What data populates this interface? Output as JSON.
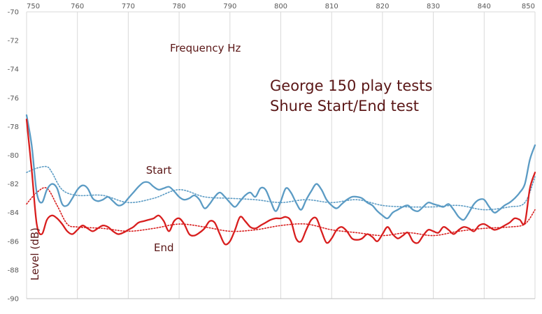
{
  "chart_data": {
    "type": "line",
    "title_lines": [
      "George 150 play tests",
      "Shure Start/End test"
    ],
    "xlabel": "Frequency Hz",
    "ylabel": "Level (dB)",
    "xlim": [
      750,
      850
    ],
    "ylim": [
      -90,
      -70
    ],
    "x_ticks": [
      750,
      760,
      770,
      780,
      790,
      800,
      810,
      820,
      830,
      840,
      850
    ],
    "y_ticks": [
      -70,
      -72,
      -74,
      -76,
      -78,
      -80,
      -82,
      -84,
      -86,
      -88,
      -90
    ],
    "grid": "vertical",
    "colors": {
      "start": "#5b9bc4",
      "end": "#d81e1e",
      "text": "#5a1616",
      "grid": "#d9d9d9"
    },
    "annotations": [
      {
        "text": "Start",
        "x": 776,
        "y": -81.3
      },
      {
        "text": "End",
        "x": 777,
        "y": -86.7
      }
    ],
    "series": [
      {
        "name": "Start",
        "style": "solid",
        "color": "#5b9bc4",
        "points": [
          [
            750,
            -77.2
          ],
          [
            751,
            -79.3
          ],
          [
            752,
            -82.6
          ],
          [
            753,
            -83.3
          ],
          [
            754,
            -82.4
          ],
          [
            755,
            -82.0
          ],
          [
            756,
            -82.3
          ],
          [
            757,
            -83.4
          ],
          [
            758,
            -83.5
          ],
          [
            759,
            -83.0
          ],
          [
            760,
            -82.4
          ],
          [
            761,
            -82.1
          ],
          [
            762,
            -82.3
          ],
          [
            763,
            -83.0
          ],
          [
            764,
            -83.2
          ],
          [
            765,
            -83.1
          ],
          [
            766,
            -82.9
          ],
          [
            767,
            -83.2
          ],
          [
            768,
            -83.5
          ],
          [
            769,
            -83.4
          ],
          [
            770,
            -83.0
          ],
          [
            771,
            -82.6
          ],
          [
            772,
            -82.2
          ],
          [
            773,
            -81.9
          ],
          [
            774,
            -81.9
          ],
          [
            775,
            -82.2
          ],
          [
            776,
            -82.4
          ],
          [
            777,
            -82.3
          ],
          [
            778,
            -82.2
          ],
          [
            779,
            -82.5
          ],
          [
            780,
            -82.9
          ],
          [
            781,
            -83.1
          ],
          [
            782,
            -83.0
          ],
          [
            783,
            -82.8
          ],
          [
            784,
            -83.1
          ],
          [
            785,
            -83.7
          ],
          [
            786,
            -83.4
          ],
          [
            787,
            -82.9
          ],
          [
            788,
            -82.6
          ],
          [
            789,
            -82.9
          ],
          [
            790,
            -83.3
          ],
          [
            791,
            -83.6
          ],
          [
            792,
            -83.2
          ],
          [
            793,
            -82.8
          ],
          [
            794,
            -82.6
          ],
          [
            795,
            -82.9
          ],
          [
            796,
            -82.3
          ],
          [
            797,
            -82.4
          ],
          [
            798,
            -83.2
          ],
          [
            799,
            -83.9
          ],
          [
            800,
            -83.2
          ],
          [
            801,
            -82.3
          ],
          [
            802,
            -82.6
          ],
          [
            803,
            -83.3
          ],
          [
            804,
            -83.8
          ],
          [
            805,
            -83.1
          ],
          [
            806,
            -82.5
          ],
          [
            807,
            -82.0
          ],
          [
            808,
            -82.4
          ],
          [
            809,
            -83.1
          ],
          [
            810,
            -83.5
          ],
          [
            811,
            -83.7
          ],
          [
            812,
            -83.4
          ],
          [
            813,
            -83.1
          ],
          [
            814,
            -82.9
          ],
          [
            815,
            -82.9
          ],
          [
            816,
            -83.0
          ],
          [
            817,
            -83.3
          ],
          [
            818,
            -83.5
          ],
          [
            819,
            -83.9
          ],
          [
            820,
            -84.2
          ],
          [
            821,
            -84.4
          ],
          [
            822,
            -84.0
          ],
          [
            823,
            -83.8
          ],
          [
            824,
            -83.6
          ],
          [
            825,
            -83.5
          ],
          [
            826,
            -83.8
          ],
          [
            827,
            -83.9
          ],
          [
            828,
            -83.6
          ],
          [
            829,
            -83.3
          ],
          [
            830,
            -83.4
          ],
          [
            831,
            -83.5
          ],
          [
            832,
            -83.6
          ],
          [
            833,
            -83.4
          ],
          [
            834,
            -83.8
          ],
          [
            835,
            -84.3
          ],
          [
            836,
            -84.5
          ],
          [
            837,
            -84.0
          ],
          [
            838,
            -83.4
          ],
          [
            839,
            -83.1
          ],
          [
            840,
            -83.1
          ],
          [
            841,
            -83.6
          ],
          [
            842,
            -84.0
          ],
          [
            843,
            -83.8
          ],
          [
            844,
            -83.5
          ],
          [
            845,
            -83.3
          ],
          [
            846,
            -83.0
          ],
          [
            847,
            -82.6
          ],
          [
            848,
            -82.0
          ],
          [
            849,
            -80.3
          ],
          [
            850,
            -79.3
          ]
        ]
      },
      {
        "name": "End",
        "style": "solid",
        "color": "#d81e1e",
        "points": [
          [
            750,
            -77.5
          ],
          [
            751,
            -81.0
          ],
          [
            752,
            -84.8
          ],
          [
            753,
            -85.5
          ],
          [
            754,
            -84.5
          ],
          [
            755,
            -84.2
          ],
          [
            756,
            -84.4
          ],
          [
            757,
            -84.8
          ],
          [
            758,
            -85.3
          ],
          [
            759,
            -85.5
          ],
          [
            760,
            -85.2
          ],
          [
            761,
            -84.9
          ],
          [
            762,
            -85.1
          ],
          [
            763,
            -85.3
          ],
          [
            764,
            -85.1
          ],
          [
            765,
            -84.9
          ],
          [
            766,
            -85.0
          ],
          [
            767,
            -85.3
          ],
          [
            768,
            -85.5
          ],
          [
            769,
            -85.4
          ],
          [
            770,
            -85.2
          ],
          [
            771,
            -85.0
          ],
          [
            772,
            -84.7
          ],
          [
            773,
            -84.6
          ],
          [
            774,
            -84.5
          ],
          [
            775,
            -84.4
          ],
          [
            776,
            -84.2
          ],
          [
            777,
            -84.6
          ],
          [
            778,
            -85.3
          ],
          [
            779,
            -84.6
          ],
          [
            780,
            -84.4
          ],
          [
            781,
            -84.8
          ],
          [
            782,
            -85.5
          ],
          [
            783,
            -85.6
          ],
          [
            784,
            -85.4
          ],
          [
            785,
            -85.1
          ],
          [
            786,
            -84.6
          ],
          [
            787,
            -84.7
          ],
          [
            788,
            -85.5
          ],
          [
            789,
            -86.2
          ],
          [
            790,
            -86.0
          ],
          [
            791,
            -85.2
          ],
          [
            792,
            -84.3
          ],
          [
            793,
            -84.6
          ],
          [
            794,
            -85.0
          ],
          [
            795,
            -85.1
          ],
          [
            796,
            -84.9
          ],
          [
            797,
            -84.7
          ],
          [
            798,
            -84.5
          ],
          [
            799,
            -84.4
          ],
          [
            800,
            -84.4
          ],
          [
            801,
            -84.3
          ],
          [
            802,
            -84.6
          ],
          [
            803,
            -85.8
          ],
          [
            804,
            -86.0
          ],
          [
            805,
            -85.2
          ],
          [
            806,
            -84.5
          ],
          [
            807,
            -84.4
          ],
          [
            808,
            -85.3
          ],
          [
            809,
            -86.1
          ],
          [
            810,
            -85.8
          ],
          [
            811,
            -85.2
          ],
          [
            812,
            -85.0
          ],
          [
            813,
            -85.3
          ],
          [
            814,
            -85.8
          ],
          [
            815,
            -85.9
          ],
          [
            816,
            -85.8
          ],
          [
            817,
            -85.5
          ],
          [
            818,
            -85.7
          ],
          [
            819,
            -86.0
          ],
          [
            820,
            -85.5
          ],
          [
            821,
            -85.0
          ],
          [
            822,
            -85.5
          ],
          [
            823,
            -85.8
          ],
          [
            824,
            -85.6
          ],
          [
            825,
            -85.4
          ],
          [
            826,
            -86.0
          ],
          [
            827,
            -86.1
          ],
          [
            828,
            -85.6
          ],
          [
            829,
            -85.2
          ],
          [
            830,
            -85.3
          ],
          [
            831,
            -85.4
          ],
          [
            832,
            -85.0
          ],
          [
            833,
            -85.2
          ],
          [
            834,
            -85.5
          ],
          [
            835,
            -85.2
          ],
          [
            836,
            -85.0
          ],
          [
            837,
            -85.1
          ],
          [
            838,
            -85.3
          ],
          [
            839,
            -84.9
          ],
          [
            840,
            -84.8
          ],
          [
            841,
            -85.0
          ],
          [
            842,
            -85.2
          ],
          [
            843,
            -85.1
          ],
          [
            844,
            -84.9
          ],
          [
            845,
            -84.7
          ],
          [
            846,
            -84.4
          ],
          [
            847,
            -84.5
          ],
          [
            848,
            -84.7
          ],
          [
            849,
            -82.3
          ],
          [
            850,
            -81.2
          ]
        ]
      },
      {
        "style": "dotted",
        "color": "#5b9bc4",
        "points": [
          [
            750,
            -81.2
          ],
          [
            752,
            -80.9
          ],
          [
            754,
            -80.8
          ],
          [
            755,
            -81.2
          ],
          [
            757,
            -82.4
          ],
          [
            760,
            -82.8
          ],
          [
            765,
            -82.8
          ],
          [
            770,
            -83.3
          ],
          [
            775,
            -83.0
          ],
          [
            780,
            -82.4
          ],
          [
            785,
            -82.9
          ],
          [
            790,
            -83.0
          ],
          [
            795,
            -83.1
          ],
          [
            800,
            -83.3
          ],
          [
            805,
            -83.1
          ],
          [
            810,
            -83.3
          ],
          [
            815,
            -83.1
          ],
          [
            820,
            -83.5
          ],
          [
            825,
            -83.6
          ],
          [
            830,
            -83.6
          ],
          [
            835,
            -83.5
          ],
          [
            840,
            -83.8
          ],
          [
            845,
            -83.6
          ],
          [
            848,
            -83.3
          ],
          [
            850,
            -81.5
          ]
        ]
      },
      {
        "style": "dotted",
        "color": "#d81e1e",
        "points": [
          [
            750,
            -83.4
          ],
          [
            752,
            -82.6
          ],
          [
            754,
            -82.3
          ],
          [
            756,
            -83.5
          ],
          [
            758,
            -84.8
          ],
          [
            760,
            -85.0
          ],
          [
            765,
            -85.1
          ],
          [
            770,
            -85.3
          ],
          [
            775,
            -85.1
          ],
          [
            780,
            -84.8
          ],
          [
            785,
            -85.0
          ],
          [
            790,
            -85.3
          ],
          [
            795,
            -85.2
          ],
          [
            800,
            -84.9
          ],
          [
            805,
            -84.8
          ],
          [
            810,
            -85.2
          ],
          [
            815,
            -85.4
          ],
          [
            820,
            -85.6
          ],
          [
            825,
            -85.4
          ],
          [
            830,
            -85.6
          ],
          [
            835,
            -85.3
          ],
          [
            840,
            -85.1
          ],
          [
            845,
            -85.0
          ],
          [
            848,
            -84.8
          ],
          [
            850,
            -83.8
          ]
        ]
      }
    ]
  }
}
